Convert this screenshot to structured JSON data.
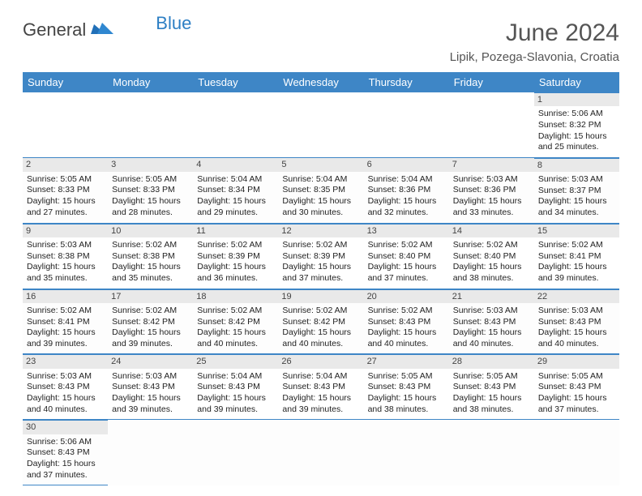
{
  "brand": {
    "general": "General",
    "blue": "Blue"
  },
  "header": {
    "title": "June 2024",
    "location": "Lipik, Pozega-Slavonia, Croatia"
  },
  "colors": {
    "header_bg": "#3e86c6",
    "header_text": "#ffffff",
    "daynum_bg": "#e9e9e9",
    "cell_border": "#3e86c6",
    "text": "#222222"
  },
  "weekdays": [
    "Sunday",
    "Monday",
    "Tuesday",
    "Wednesday",
    "Thursday",
    "Friday",
    "Saturday"
  ],
  "weeks": [
    [
      null,
      null,
      null,
      null,
      null,
      null,
      {
        "day": "1",
        "sunrise": "Sunrise: 5:06 AM",
        "sunset": "Sunset: 8:32 PM",
        "daylight1": "Daylight: 15 hours",
        "daylight2": "and 25 minutes."
      }
    ],
    [
      {
        "day": "2",
        "sunrise": "Sunrise: 5:05 AM",
        "sunset": "Sunset: 8:33 PM",
        "daylight1": "Daylight: 15 hours",
        "daylight2": "and 27 minutes."
      },
      {
        "day": "3",
        "sunrise": "Sunrise: 5:05 AM",
        "sunset": "Sunset: 8:33 PM",
        "daylight1": "Daylight: 15 hours",
        "daylight2": "and 28 minutes."
      },
      {
        "day": "4",
        "sunrise": "Sunrise: 5:04 AM",
        "sunset": "Sunset: 8:34 PM",
        "daylight1": "Daylight: 15 hours",
        "daylight2": "and 29 minutes."
      },
      {
        "day": "5",
        "sunrise": "Sunrise: 5:04 AM",
        "sunset": "Sunset: 8:35 PM",
        "daylight1": "Daylight: 15 hours",
        "daylight2": "and 30 minutes."
      },
      {
        "day": "6",
        "sunrise": "Sunrise: 5:04 AM",
        "sunset": "Sunset: 8:36 PM",
        "daylight1": "Daylight: 15 hours",
        "daylight2": "and 32 minutes."
      },
      {
        "day": "7",
        "sunrise": "Sunrise: 5:03 AM",
        "sunset": "Sunset: 8:36 PM",
        "daylight1": "Daylight: 15 hours",
        "daylight2": "and 33 minutes."
      },
      {
        "day": "8",
        "sunrise": "Sunrise: 5:03 AM",
        "sunset": "Sunset: 8:37 PM",
        "daylight1": "Daylight: 15 hours",
        "daylight2": "and 34 minutes."
      }
    ],
    [
      {
        "day": "9",
        "sunrise": "Sunrise: 5:03 AM",
        "sunset": "Sunset: 8:38 PM",
        "daylight1": "Daylight: 15 hours",
        "daylight2": "and 35 minutes."
      },
      {
        "day": "10",
        "sunrise": "Sunrise: 5:02 AM",
        "sunset": "Sunset: 8:38 PM",
        "daylight1": "Daylight: 15 hours",
        "daylight2": "and 35 minutes."
      },
      {
        "day": "11",
        "sunrise": "Sunrise: 5:02 AM",
        "sunset": "Sunset: 8:39 PM",
        "daylight1": "Daylight: 15 hours",
        "daylight2": "and 36 minutes."
      },
      {
        "day": "12",
        "sunrise": "Sunrise: 5:02 AM",
        "sunset": "Sunset: 8:39 PM",
        "daylight1": "Daylight: 15 hours",
        "daylight2": "and 37 minutes."
      },
      {
        "day": "13",
        "sunrise": "Sunrise: 5:02 AM",
        "sunset": "Sunset: 8:40 PM",
        "daylight1": "Daylight: 15 hours",
        "daylight2": "and 37 minutes."
      },
      {
        "day": "14",
        "sunrise": "Sunrise: 5:02 AM",
        "sunset": "Sunset: 8:40 PM",
        "daylight1": "Daylight: 15 hours",
        "daylight2": "and 38 minutes."
      },
      {
        "day": "15",
        "sunrise": "Sunrise: 5:02 AM",
        "sunset": "Sunset: 8:41 PM",
        "daylight1": "Daylight: 15 hours",
        "daylight2": "and 39 minutes."
      }
    ],
    [
      {
        "day": "16",
        "sunrise": "Sunrise: 5:02 AM",
        "sunset": "Sunset: 8:41 PM",
        "daylight1": "Daylight: 15 hours",
        "daylight2": "and 39 minutes."
      },
      {
        "day": "17",
        "sunrise": "Sunrise: 5:02 AM",
        "sunset": "Sunset: 8:42 PM",
        "daylight1": "Daylight: 15 hours",
        "daylight2": "and 39 minutes."
      },
      {
        "day": "18",
        "sunrise": "Sunrise: 5:02 AM",
        "sunset": "Sunset: 8:42 PM",
        "daylight1": "Daylight: 15 hours",
        "daylight2": "and 40 minutes."
      },
      {
        "day": "19",
        "sunrise": "Sunrise: 5:02 AM",
        "sunset": "Sunset: 8:42 PM",
        "daylight1": "Daylight: 15 hours",
        "daylight2": "and 40 minutes."
      },
      {
        "day": "20",
        "sunrise": "Sunrise: 5:02 AM",
        "sunset": "Sunset: 8:43 PM",
        "daylight1": "Daylight: 15 hours",
        "daylight2": "and 40 minutes."
      },
      {
        "day": "21",
        "sunrise": "Sunrise: 5:03 AM",
        "sunset": "Sunset: 8:43 PM",
        "daylight1": "Daylight: 15 hours",
        "daylight2": "and 40 minutes."
      },
      {
        "day": "22",
        "sunrise": "Sunrise: 5:03 AM",
        "sunset": "Sunset: 8:43 PM",
        "daylight1": "Daylight: 15 hours",
        "daylight2": "and 40 minutes."
      }
    ],
    [
      {
        "day": "23",
        "sunrise": "Sunrise: 5:03 AM",
        "sunset": "Sunset: 8:43 PM",
        "daylight1": "Daylight: 15 hours",
        "daylight2": "and 40 minutes."
      },
      {
        "day": "24",
        "sunrise": "Sunrise: 5:03 AM",
        "sunset": "Sunset: 8:43 PM",
        "daylight1": "Daylight: 15 hours",
        "daylight2": "and 39 minutes."
      },
      {
        "day": "25",
        "sunrise": "Sunrise: 5:04 AM",
        "sunset": "Sunset: 8:43 PM",
        "daylight1": "Daylight: 15 hours",
        "daylight2": "and 39 minutes."
      },
      {
        "day": "26",
        "sunrise": "Sunrise: 5:04 AM",
        "sunset": "Sunset: 8:43 PM",
        "daylight1": "Daylight: 15 hours",
        "daylight2": "and 39 minutes."
      },
      {
        "day": "27",
        "sunrise": "Sunrise: 5:05 AM",
        "sunset": "Sunset: 8:43 PM",
        "daylight1": "Daylight: 15 hours",
        "daylight2": "and 38 minutes."
      },
      {
        "day": "28",
        "sunrise": "Sunrise: 5:05 AM",
        "sunset": "Sunset: 8:43 PM",
        "daylight1": "Daylight: 15 hours",
        "daylight2": "and 38 minutes."
      },
      {
        "day": "29",
        "sunrise": "Sunrise: 5:05 AM",
        "sunset": "Sunset: 8:43 PM",
        "daylight1": "Daylight: 15 hours",
        "daylight2": "and 37 minutes."
      }
    ],
    [
      {
        "day": "30",
        "sunrise": "Sunrise: 5:06 AM",
        "sunset": "Sunset: 8:43 PM",
        "daylight1": "Daylight: 15 hours",
        "daylight2": "and 37 minutes."
      },
      null,
      null,
      null,
      null,
      null,
      null
    ]
  ]
}
